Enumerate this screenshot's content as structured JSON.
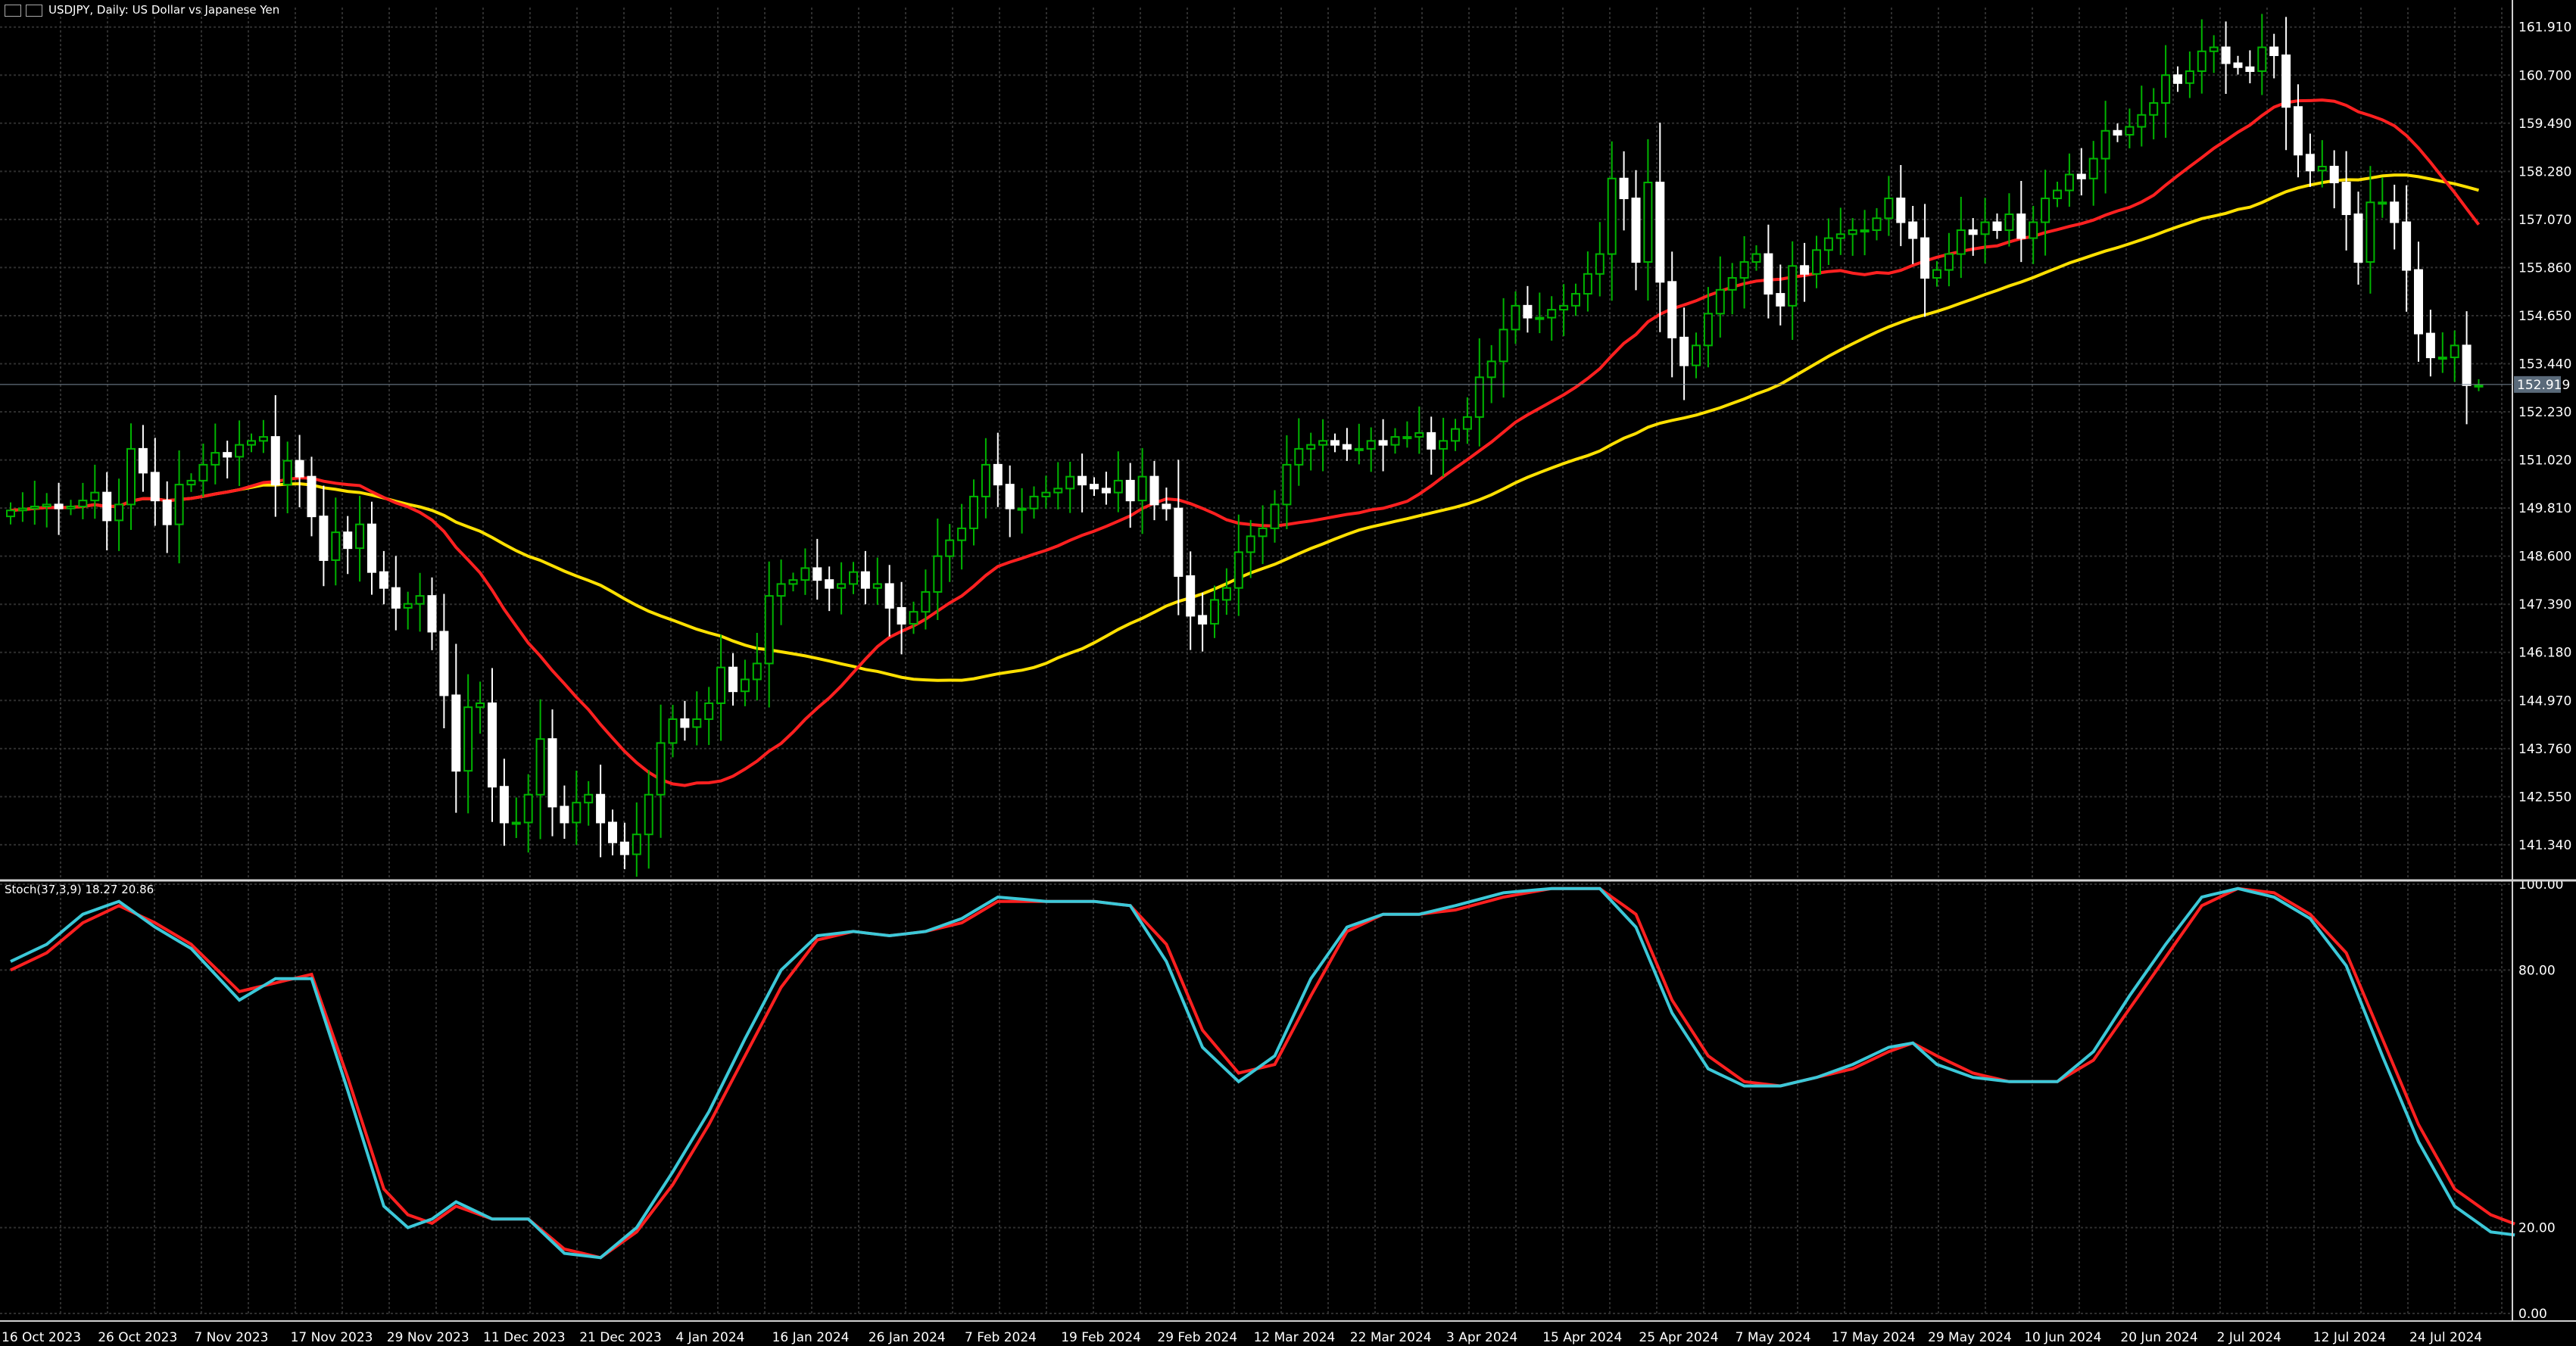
{
  "header": {
    "title": "USDJPY, Daily:  US Dollar vs Japanese Yen"
  },
  "indicator": {
    "label": "Stoch(37,3,9) 18.27 20.86"
  },
  "colors": {
    "background": "#000000",
    "grid": "#2e2e2e",
    "bull_candle": "#00b400",
    "bear_candle": "#ffffff",
    "ma_fast": "#ff2020",
    "ma_slow": "#ffe000",
    "stoch_main": "#3cc8d8",
    "stoch_signal": "#ff2020",
    "axis_text": "#ffffff",
    "price_tag": "#5a6a7a"
  },
  "chart_data": {
    "type": "candlestick",
    "symbol": "USDJPY",
    "timeframe": "Daily",
    "current_price": "152.919",
    "ylim": [
      140.5,
      162.4
    ],
    "price_ticks": [
      "161.910",
      "160.700",
      "159.490",
      "158.280",
      "157.070",
      "155.860",
      "154.650",
      "153.440",
      "152.230",
      "151.020",
      "149.810",
      "148.600",
      "147.390",
      "146.180",
      "144.970",
      "143.760",
      "142.550",
      "141.340"
    ],
    "date_ticks": [
      {
        "label": "16 Oct 2023",
        "index": 0
      },
      {
        "label": "26 Oct 2023",
        "index": 8
      },
      {
        "label": "7 Nov 2023",
        "index": 16
      },
      {
        "label": "17 Nov 2023",
        "index": 24
      },
      {
        "label": "29 Nov 2023",
        "index": 32
      },
      {
        "label": "11 Dec 2023",
        "index": 40
      },
      {
        "label": "21 Dec 2023",
        "index": 48
      },
      {
        "label": "4 Jan 2024",
        "index": 56
      },
      {
        "label": "16 Jan 2024",
        "index": 64
      },
      {
        "label": "26 Jan 2024",
        "index": 72
      },
      {
        "label": "7 Feb 2024",
        "index": 80
      },
      {
        "label": "19 Feb 2024",
        "index": 88
      },
      {
        "label": "29 Feb 2024",
        "index": 96
      },
      {
        "label": "12 Mar 2024",
        "index": 104
      },
      {
        "label": "22 Mar 2024",
        "index": 112
      },
      {
        "label": "3 Apr 2024",
        "index": 120
      },
      {
        "label": "15 Apr 2024",
        "index": 128
      },
      {
        "label": "25 Apr 2024",
        "index": 136
      },
      {
        "label": "7 May 2024",
        "index": 144
      },
      {
        "label": "17 May 2024",
        "index": 152
      },
      {
        "label": "29 May 2024",
        "index": 160
      },
      {
        "label": "10 Jun 2024",
        "index": 168
      },
      {
        "label": "20 Jun 2024",
        "index": 176
      },
      {
        "label": "2 Jul 2024",
        "index": 184
      },
      {
        "label": "12 Jul 2024",
        "index": 192
      },
      {
        "label": "24 Jul 2024",
        "index": 200
      }
    ],
    "closes": [
      149.75,
      149.8,
      149.85,
      149.9,
      149.8,
      149.85,
      150.0,
      150.2,
      149.5,
      149.9,
      151.3,
      150.7,
      150.0,
      149.4,
      150.4,
      150.5,
      150.9,
      151.2,
      151.1,
      151.4,
      151.5,
      151.6,
      150.4,
      151.0,
      150.6,
      149.6,
      148.5,
      149.2,
      148.8,
      149.4,
      148.2,
      147.8,
      147.3,
      147.4,
      147.6,
      146.7,
      145.1,
      143.2,
      144.8,
      144.9,
      142.8,
      141.9,
      141.9,
      142.6,
      144.0,
      142.3,
      141.9,
      142.4,
      142.6,
      141.9,
      141.4,
      141.1,
      141.6,
      142.6,
      143.9,
      144.5,
      144.3,
      144.5,
      144.9,
      145.8,
      145.2,
      145.5,
      145.9,
      147.6,
      147.9,
      148.0,
      148.3,
      148.0,
      147.8,
      147.9,
      148.2,
      147.8,
      147.9,
      147.3,
      146.9,
      147.2,
      147.7,
      148.6,
      149.0,
      149.3,
      150.1,
      150.9,
      150.4,
      149.8,
      149.8,
      150.1,
      150.2,
      150.3,
      150.6,
      150.4,
      150.3,
      150.2,
      150.5,
      150.0,
      150.6,
      149.9,
      149.8,
      148.1,
      147.1,
      146.9,
      147.5,
      147.8,
      148.7,
      149.1,
      149.3,
      149.9,
      150.9,
      151.3,
      151.4,
      151.5,
      151.4,
      151.3,
      151.3,
      151.5,
      151.4,
      151.6,
      151.6,
      151.7,
      151.3,
      151.5,
      151.8,
      152.1,
      153.1,
      153.5,
      154.3,
      154.9,
      154.6,
      154.6,
      154.8,
      154.9,
      155.2,
      155.7,
      156.2,
      158.1,
      157.6,
      156.0,
      158.0,
      155.5,
      154.1,
      153.4,
      153.9,
      154.7,
      155.3,
      155.6,
      156.0,
      156.2,
      155.2,
      154.9,
      155.9,
      155.7,
      156.3,
      156.6,
      156.7,
      156.8,
      156.8,
      157.1,
      157.6,
      157.0,
      156.6,
      155.6,
      155.8,
      156.2,
      156.8,
      156.7,
      157.0,
      156.8,
      157.2,
      156.6,
      157.0,
      157.6,
      157.8,
      158.2,
      158.1,
      158.6,
      159.3,
      159.2,
      159.4,
      159.7,
      160.0,
      160.7,
      160.5,
      160.8,
      161.3,
      161.4,
      161.0,
      160.9,
      160.8,
      161.4,
      161.2,
      159.9,
      158.7,
      158.3,
      158.4,
      158.0,
      157.2,
      156.0,
      157.5,
      157.5,
      157.0,
      155.8,
      154.2,
      153.6,
      153.6,
      153.9,
      152.9,
      152.9
    ]
  },
  "stoch_data": {
    "type": "line",
    "ylim": [
      0,
      100
    ],
    "y_ticks": [
      "100.00",
      "80.00",
      "20.00",
      "0.00"
    ],
    "main_keyframes": [
      [
        0,
        82
      ],
      [
        3,
        86
      ],
      [
        6,
        93
      ],
      [
        9,
        96
      ],
      [
        12,
        90
      ],
      [
        15,
        85
      ],
      [
        19,
        73
      ],
      [
        22,
        78
      ],
      [
        25,
        78
      ],
      [
        28,
        52
      ],
      [
        31,
        25
      ],
      [
        33,
        20
      ],
      [
        35,
        22
      ],
      [
        37,
        26
      ],
      [
        40,
        22
      ],
      [
        43,
        22
      ],
      [
        46,
        14
      ],
      [
        49,
        13
      ],
      [
        52,
        20
      ],
      [
        55,
        33
      ],
      [
        58,
        47
      ],
      [
        61,
        64
      ],
      [
        64,
        80
      ],
      [
        67,
        88
      ],
      [
        70,
        89
      ],
      [
        73,
        88
      ],
      [
        76,
        89
      ],
      [
        79,
        92
      ],
      [
        82,
        97
      ],
      [
        86,
        96
      ],
      [
        90,
        96
      ],
      [
        93,
        95
      ],
      [
        96,
        82
      ],
      [
        99,
        62
      ],
      [
        102,
        54
      ],
      [
        105,
        60
      ],
      [
        108,
        78
      ],
      [
        111,
        90
      ],
      [
        114,
        93
      ],
      [
        117,
        93
      ],
      [
        120,
        95
      ],
      [
        124,
        98
      ],
      [
        128,
        99
      ],
      [
        132,
        99
      ],
      [
        135,
        90
      ],
      [
        138,
        70
      ],
      [
        141,
        57
      ],
      [
        144,
        53
      ],
      [
        147,
        53
      ],
      [
        150,
        55
      ],
      [
        153,
        58
      ],
      [
        156,
        62
      ],
      [
        158,
        63
      ],
      [
        160,
        58
      ],
      [
        163,
        55
      ],
      [
        166,
        54
      ],
      [
        170,
        54
      ],
      [
        173,
        61
      ],
      [
        176,
        74
      ],
      [
        179,
        86
      ],
      [
        182,
        97
      ],
      [
        185,
        99
      ],
      [
        188,
        97
      ],
      [
        191,
        92
      ],
      [
        194,
        81
      ],
      [
        197,
        60
      ],
      [
        200,
        40
      ],
      [
        203,
        25
      ],
      [
        206,
        19
      ],
      [
        208,
        18.27
      ]
    ],
    "signal_keyframes": [
      [
        0,
        80
      ],
      [
        3,
        84
      ],
      [
        6,
        91
      ],
      [
        9,
        95
      ],
      [
        12,
        91
      ],
      [
        15,
        86
      ],
      [
        19,
        75
      ],
      [
        22,
        77
      ],
      [
        25,
        79
      ],
      [
        28,
        55
      ],
      [
        31,
        29
      ],
      [
        33,
        23
      ],
      [
        35,
        21
      ],
      [
        37,
        25
      ],
      [
        40,
        22
      ],
      [
        43,
        22
      ],
      [
        46,
        15
      ],
      [
        49,
        13
      ],
      [
        52,
        19
      ],
      [
        55,
        30
      ],
      [
        58,
        44
      ],
      [
        61,
        60
      ],
      [
        64,
        76
      ],
      [
        67,
        87
      ],
      [
        70,
        89
      ],
      [
        73,
        88
      ],
      [
        76,
        89
      ],
      [
        79,
        91
      ],
      [
        82,
        96
      ],
      [
        86,
        96
      ],
      [
        90,
        96
      ],
      [
        93,
        95
      ],
      [
        96,
        86
      ],
      [
        99,
        66
      ],
      [
        102,
        56
      ],
      [
        105,
        58
      ],
      [
        108,
        74
      ],
      [
        111,
        89
      ],
      [
        114,
        93
      ],
      [
        117,
        93
      ],
      [
        120,
        94
      ],
      [
        124,
        97
      ],
      [
        128,
        99
      ],
      [
        132,
        99
      ],
      [
        135,
        93
      ],
      [
        138,
        73
      ],
      [
        141,
        60
      ],
      [
        144,
        54
      ],
      [
        147,
        53
      ],
      [
        150,
        55
      ],
      [
        153,
        57
      ],
      [
        156,
        61
      ],
      [
        158,
        63
      ],
      [
        160,
        60
      ],
      [
        163,
        56
      ],
      [
        166,
        54
      ],
      [
        170,
        54
      ],
      [
        173,
        59
      ],
      [
        176,
        71
      ],
      [
        179,
        83
      ],
      [
        182,
        95
      ],
      [
        185,
        99
      ],
      [
        188,
        98
      ],
      [
        191,
        93
      ],
      [
        194,
        84
      ],
      [
        197,
        64
      ],
      [
        200,
        44
      ],
      [
        203,
        29
      ],
      [
        206,
        23
      ],
      [
        208,
        20.86
      ]
    ]
  }
}
